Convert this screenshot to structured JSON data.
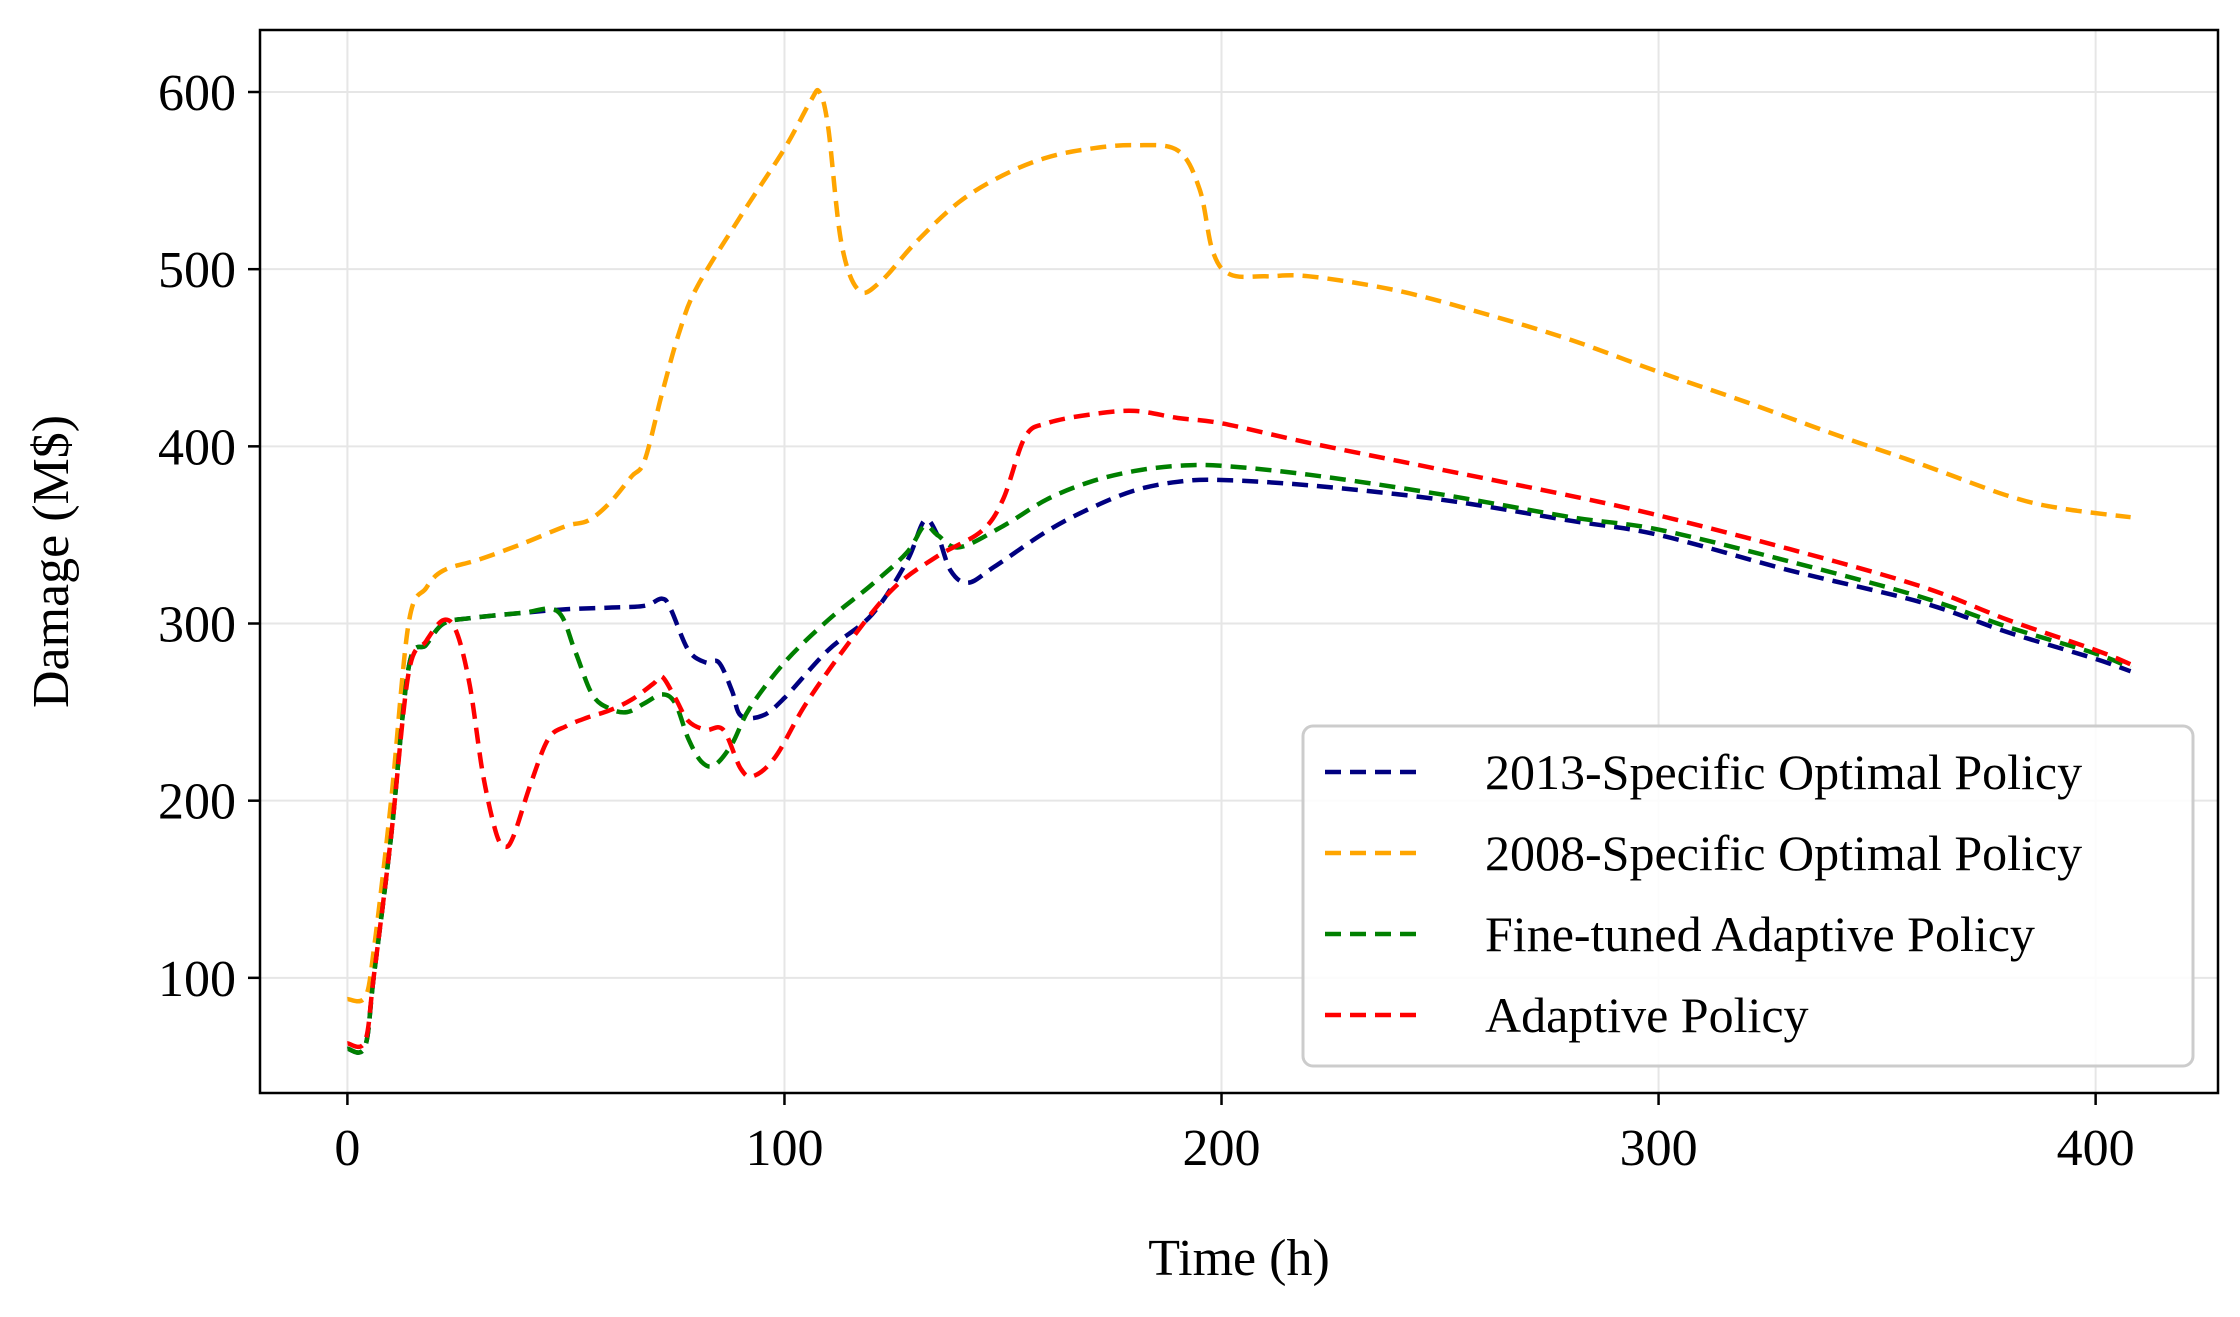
{
  "chart_data": {
    "type": "line",
    "title": "",
    "xlabel": "Time (h)",
    "ylabel": "Damage (M$)",
    "xlim": [
      -20,
      428
    ],
    "ylim": [
      35,
      635
    ],
    "xticks": [
      0,
      100,
      200,
      300,
      400
    ],
    "yticks": [
      100,
      200,
      300,
      400,
      500,
      600
    ],
    "grid": true,
    "legend_position": "lower-right",
    "series": [
      {
        "name": "2013-Specific Optimal Policy",
        "color": "#000080",
        "points": [
          [
            0,
            60
          ],
          [
            4,
            61
          ],
          [
            6,
            100
          ],
          [
            10,
            180
          ],
          [
            14,
            275
          ],
          [
            18,
            288
          ],
          [
            22,
            300
          ],
          [
            28,
            303
          ],
          [
            40,
            306
          ],
          [
            50,
            308
          ],
          [
            60,
            309
          ],
          [
            68,
            310
          ],
          [
            72,
            314
          ],
          [
            74,
            308
          ],
          [
            78,
            285
          ],
          [
            82,
            278
          ],
          [
            85,
            278
          ],
          [
            88,
            262
          ],
          [
            90,
            248
          ],
          [
            95,
            248
          ],
          [
            100,
            258
          ],
          [
            110,
            285
          ],
          [
            120,
            305
          ],
          [
            128,
            335
          ],
          [
            132,
            358
          ],
          [
            135,
            350
          ],
          [
            138,
            330
          ],
          [
            142,
            323
          ],
          [
            148,
            332
          ],
          [
            160,
            352
          ],
          [
            170,
            365
          ],
          [
            180,
            375
          ],
          [
            190,
            380
          ],
          [
            200,
            381
          ],
          [
            220,
            378
          ],
          [
            250,
            370
          ],
          [
            280,
            358
          ],
          [
            300,
            350
          ],
          [
            330,
            330
          ],
          [
            360,
            312
          ],
          [
            380,
            295
          ],
          [
            400,
            280
          ],
          [
            408,
            273
          ]
        ]
      },
      {
        "name": "2008-Specific Optimal Policy",
        "color": "#FFA500",
        "points": [
          [
            0,
            88
          ],
          [
            4,
            89
          ],
          [
            6,
            115
          ],
          [
            10,
            200
          ],
          [
            14,
            300
          ],
          [
            18,
            320
          ],
          [
            22,
            330
          ],
          [
            30,
            336
          ],
          [
            40,
            345
          ],
          [
            50,
            355
          ],
          [
            55,
            358
          ],
          [
            60,
            368
          ],
          [
            65,
            383
          ],
          [
            68,
            392
          ],
          [
            72,
            430
          ],
          [
            76,
            465
          ],
          [
            80,
            490
          ],
          [
            90,
            530
          ],
          [
            100,
            568
          ],
          [
            106,
            595
          ],
          [
            108,
            600
          ],
          [
            110,
            580
          ],
          [
            113,
            515
          ],
          [
            117,
            488
          ],
          [
            122,
            493
          ],
          [
            130,
            515
          ],
          [
            140,
            538
          ],
          [
            150,
            553
          ],
          [
            160,
            563
          ],
          [
            170,
            568
          ],
          [
            180,
            570
          ],
          [
            190,
            567
          ],
          [
            195,
            545
          ],
          [
            198,
            510
          ],
          [
            202,
            497
          ],
          [
            210,
            496
          ],
          [
            220,
            496
          ],
          [
            240,
            488
          ],
          [
            260,
            475
          ],
          [
            280,
            460
          ],
          [
            300,
            442
          ],
          [
            320,
            425
          ],
          [
            340,
            407
          ],
          [
            360,
            390
          ],
          [
            380,
            372
          ],
          [
            392,
            365
          ],
          [
            408,
            360
          ]
        ]
      },
      {
        "name": "Fine-tuned Adaptive Policy",
        "color": "#008000",
        "points": [
          [
            0,
            60
          ],
          [
            4,
            61
          ],
          [
            6,
            100
          ],
          [
            10,
            180
          ],
          [
            14,
            275
          ],
          [
            18,
            288
          ],
          [
            22,
            300
          ],
          [
            28,
            303
          ],
          [
            40,
            306
          ],
          [
            48,
            307
          ],
          [
            52,
            285
          ],
          [
            56,
            260
          ],
          [
            60,
            252
          ],
          [
            64,
            250
          ],
          [
            68,
            255
          ],
          [
            72,
            260
          ],
          [
            75,
            255
          ],
          [
            78,
            235
          ],
          [
            81,
            222
          ],
          [
            84,
            220
          ],
          [
            88,
            232
          ],
          [
            92,
            252
          ],
          [
            100,
            278
          ],
          [
            110,
            302
          ],
          [
            120,
            322
          ],
          [
            128,
            340
          ],
          [
            132,
            355
          ],
          [
            135,
            350
          ],
          [
            140,
            343
          ],
          [
            150,
            355
          ],
          [
            160,
            370
          ],
          [
            170,
            380
          ],
          [
            180,
            386
          ],
          [
            190,
            389
          ],
          [
            200,
            389
          ],
          [
            220,
            384
          ],
          [
            250,
            373
          ],
          [
            280,
            360
          ],
          [
            300,
            353
          ],
          [
            330,
            335
          ],
          [
            360,
            315
          ],
          [
            380,
            298
          ],
          [
            400,
            283
          ],
          [
            408,
            275
          ]
        ]
      },
      {
        "name": "Adaptive Policy",
        "color": "#FF0000",
        "points": [
          [
            0,
            63
          ],
          [
            4,
            64
          ],
          [
            6,
            100
          ],
          [
            10,
            180
          ],
          [
            14,
            272
          ],
          [
            18,
            290
          ],
          [
            22,
            302
          ],
          [
            25,
            295
          ],
          [
            28,
            265
          ],
          [
            31,
            215
          ],
          [
            34,
            182
          ],
          [
            36,
            174
          ],
          [
            38,
            180
          ],
          [
            42,
            210
          ],
          [
            46,
            235
          ],
          [
            50,
            242
          ],
          [
            55,
            247
          ],
          [
            60,
            251
          ],
          [
            65,
            257
          ],
          [
            70,
            266
          ],
          [
            72,
            270
          ],
          [
            75,
            258
          ],
          [
            78,
            245
          ],
          [
            82,
            240
          ],
          [
            86,
            240
          ],
          [
            90,
            218
          ],
          [
            93,
            214
          ],
          [
            98,
            225
          ],
          [
            105,
            255
          ],
          [
            115,
            290
          ],
          [
            125,
            320
          ],
          [
            135,
            338
          ],
          [
            145,
            352
          ],
          [
            150,
            370
          ],
          [
            155,
            405
          ],
          [
            160,
            413
          ],
          [
            170,
            418
          ],
          [
            180,
            420
          ],
          [
            190,
            416
          ],
          [
            200,
            413
          ],
          [
            220,
            402
          ],
          [
            250,
            387
          ],
          [
            280,
            372
          ],
          [
            300,
            361
          ],
          [
            330,
            342
          ],
          [
            360,
            321
          ],
          [
            380,
            302
          ],
          [
            400,
            285
          ],
          [
            408,
            277
          ]
        ]
      }
    ]
  }
}
